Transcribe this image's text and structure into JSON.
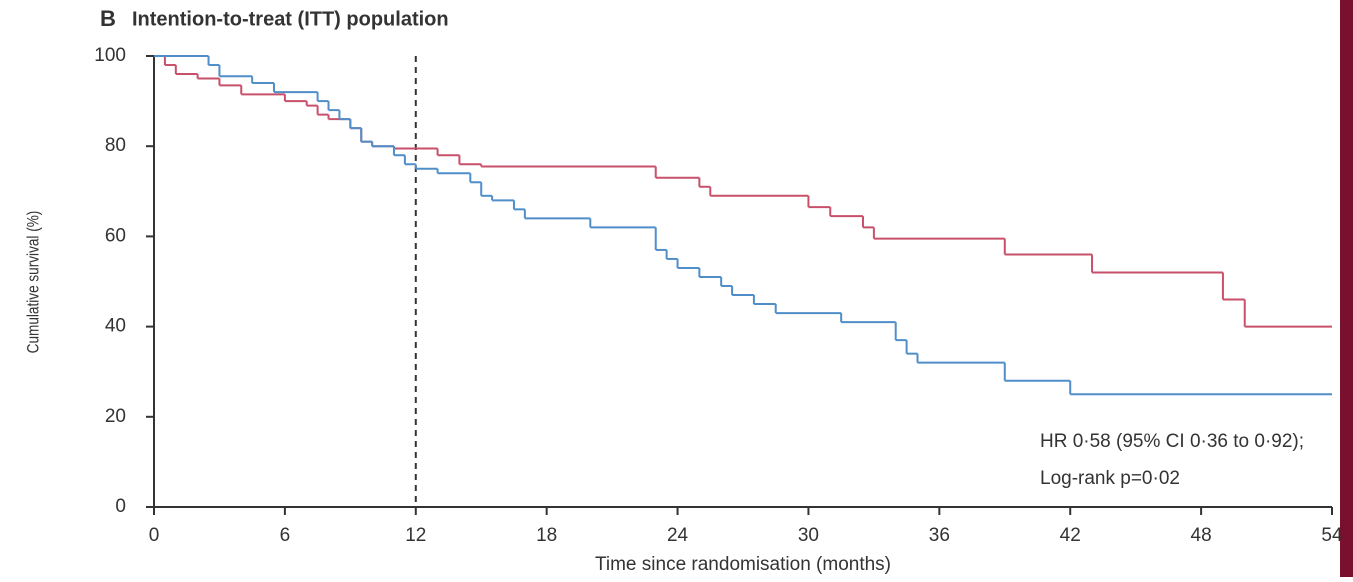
{
  "chart_data": {
    "type": "step",
    "panel_label": "B",
    "title": "Intention-to-treat (ITT) population",
    "x_label": "Time since randomisation (months)",
    "y_label": "Cumulative survival (%)",
    "annotations": [
      "HR 0·58 (95% CI 0·36 to 0·92);",
      "Log-rank p=0·02"
    ],
    "reference_line_x": 12,
    "xlim": [
      0,
      54
    ],
    "ylim": [
      0,
      100
    ],
    "xticks": [
      0,
      6,
      12,
      18,
      24,
      30,
      36,
      42,
      48,
      54
    ],
    "yticks": [
      0,
      20,
      40,
      60,
      80,
      100
    ],
    "grid": false,
    "series": [
      {
        "color": "#c8506a",
        "x": [
          0,
          0.5,
          1,
          2,
          3,
          4,
          6,
          7,
          7.5,
          8,
          9,
          9.5,
          10,
          11,
          13,
          14,
          15,
          23,
          25,
          25.5,
          30,
          31,
          32.5,
          33,
          39,
          43,
          49,
          50,
          54
        ],
        "values": [
          100,
          98,
          96,
          95,
          93.5,
          91.5,
          90,
          89,
          87,
          86,
          84,
          81,
          80,
          79.5,
          78,
          76,
          75.5,
          73,
          71,
          69,
          66.5,
          64.5,
          62,
          59.5,
          56,
          52,
          46,
          40,
          40
        ]
      },
      {
        "color": "#4f8ec9",
        "x": [
          0,
          2.5,
          3,
          4.5,
          5.5,
          7.5,
          8,
          8.5,
          9,
          9.5,
          10,
          11,
          11.5,
          12,
          13,
          14.5,
          15,
          15.5,
          16.5,
          17,
          20,
          23,
          23.5,
          24,
          25,
          26,
          26.5,
          27.5,
          28.5,
          31.5,
          34,
          34.5,
          35,
          39,
          42,
          54
        ],
        "values": [
          100,
          98,
          95.5,
          94,
          92,
          90,
          88,
          86,
          84,
          81,
          80,
          78,
          76,
          75,
          74,
          72,
          69,
          68,
          66,
          64,
          62,
          57,
          55,
          53,
          51,
          49,
          47,
          45,
          43,
          41,
          37,
          34,
          32,
          28,
          25,
          25
        ]
      }
    ]
  }
}
